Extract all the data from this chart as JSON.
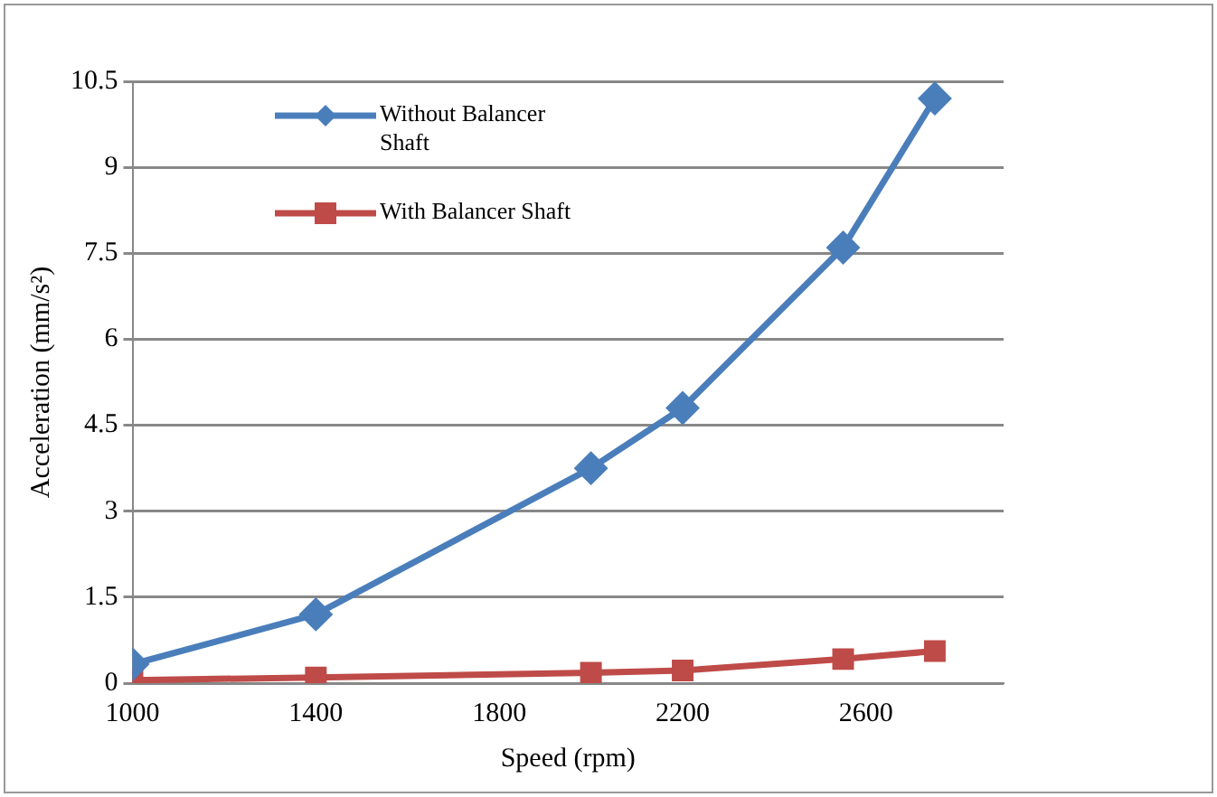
{
  "chart_data": {
    "type": "line",
    "xlabel": "Speed (rpm)",
    "ylabel": "Acceleration (mm/s²)",
    "x": [
      1000,
      1400,
      2000,
      2200,
      2550,
      2750
    ],
    "series": [
      {
        "name": "Without Balancer Shaft",
        "color": "#4a7ebb",
        "marker": "diamond",
        "values": [
          0.33,
          1.2,
          3.75,
          4.8,
          7.6,
          10.2
        ]
      },
      {
        "name": "With Balancer Shaft",
        "color": "#be4b48",
        "marker": "square",
        "values": [
          0.05,
          0.1,
          0.18,
          0.22,
          0.42,
          0.56
        ]
      }
    ],
    "xlim": [
      1000,
      2900
    ],
    "xticks": [
      1000,
      1400,
      1800,
      2200,
      2600
    ],
    "ylim": [
      0,
      10.5
    ],
    "yticks": [
      0,
      1.5,
      3,
      4.5,
      6,
      7.5,
      9,
      10.5
    ],
    "grid": "y",
    "legend": "top left",
    "line_style": "solid"
  }
}
